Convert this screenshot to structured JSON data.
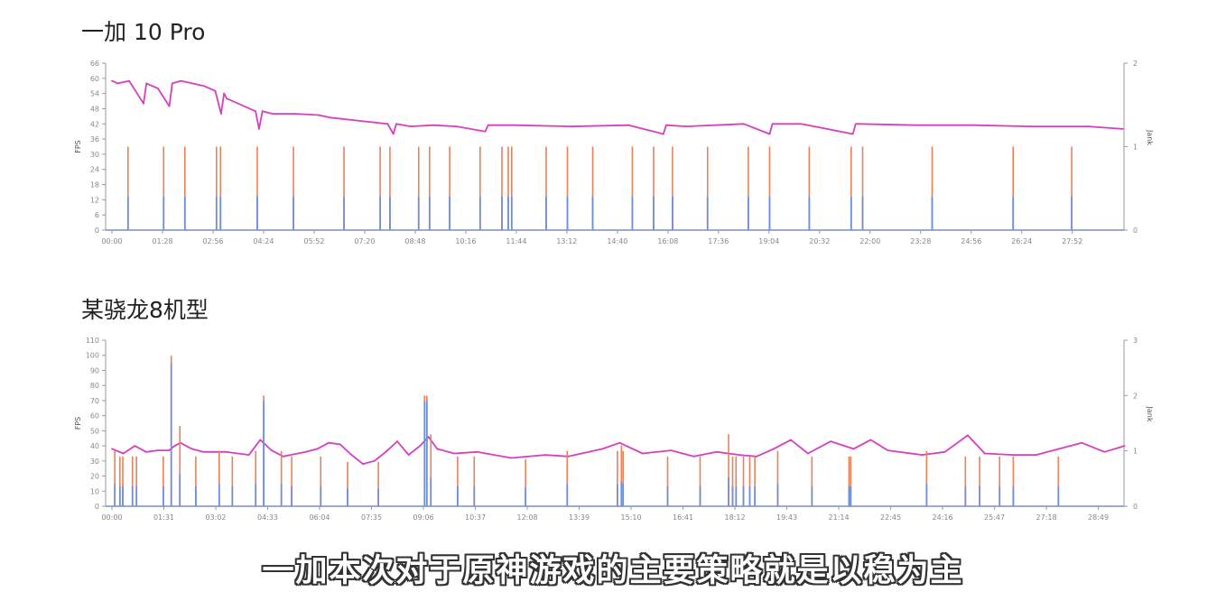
{
  "caption": "一加本次对于原神游戏的主要策略就是以稳为主",
  "colors": {
    "fps": "#d63fbf",
    "jank_top": "#e8825a",
    "jank_base": "#6f8fd6",
    "axis": "#9a9a9a",
    "tick_text": "#888888"
  },
  "chart_data": [
    {
      "type": "line",
      "title": "一加 10 Pro",
      "ylabel": "FPS",
      "y2label": "Jank",
      "ylim": [
        0,
        66
      ],
      "yticks": [
        0,
        6,
        12,
        18,
        24,
        30,
        36,
        42,
        48,
        54,
        60,
        66
      ],
      "y2lim": [
        0,
        2
      ],
      "y2ticks": [
        0,
        1,
        2
      ],
      "xlim": [
        "00:00",
        "29:22"
      ],
      "xticks": [
        "00:00",
        "01:28",
        "02:56",
        "04:24",
        "05:52",
        "07:20",
        "08:48",
        "10:16",
        "11:44",
        "13:12",
        "14:40",
        "16:08",
        "17:36",
        "19:04",
        "20:32",
        "22:00",
        "23:28",
        "24:56",
        "26:24",
        "27:52"
      ],
      "grid": false,
      "series": [
        {
          "axis": "left",
          "kind": "line",
          "points": [
            [
              "00:00",
              59
            ],
            [
              "00:10",
              58
            ],
            [
              "00:30",
              59
            ],
            [
              "00:55",
              50
            ],
            [
              "01:00",
              58
            ],
            [
              "01:20",
              56
            ],
            [
              "01:40",
              49
            ],
            [
              "01:45",
              58
            ],
            [
              "02:00",
              59
            ],
            [
              "02:20",
              58
            ],
            [
              "02:40",
              57
            ],
            [
              "03:00",
              55
            ],
            [
              "03:10",
              46
            ],
            [
              "03:15",
              54
            ],
            [
              "03:20",
              52
            ],
            [
              "03:40",
              50
            ],
            [
              "04:10",
              47
            ],
            [
              "04:16",
              40
            ],
            [
              "04:22",
              47
            ],
            [
              "04:40",
              46
            ],
            [
              "05:20",
              46
            ],
            [
              "06:00",
              45.5
            ],
            [
              "06:20",
              44.5
            ],
            [
              "06:40",
              44
            ],
            [
              "07:20",
              43
            ],
            [
              "08:00",
              42
            ],
            [
              "08:10",
              38
            ],
            [
              "08:15",
              42
            ],
            [
              "08:40",
              41
            ],
            [
              "09:20",
              41.5
            ],
            [
              "10:00",
              41
            ],
            [
              "10:50",
              39
            ],
            [
              "10:55",
              41.5
            ],
            [
              "11:40",
              41.5
            ],
            [
              "13:20",
              41
            ],
            [
              "15:00",
              41.5
            ],
            [
              "16:00",
              38
            ],
            [
              "16:05",
              41.5
            ],
            [
              "16:40",
              41
            ],
            [
              "18:20",
              42
            ],
            [
              "19:05",
              38
            ],
            [
              "19:10",
              42
            ],
            [
              "20:00",
              42
            ],
            [
              "21:30",
              38
            ],
            [
              "21:35",
              42
            ],
            [
              "21:40",
              42
            ],
            [
              "23:20",
              41.5
            ],
            [
              "25:00",
              41.5
            ],
            [
              "26:40",
              41
            ],
            [
              "28:20",
              41
            ],
            [
              "29:20",
              40
            ]
          ]
        },
        {
          "axis": "right",
          "kind": "spikes",
          "points": [
            [
              "00:28",
              1
            ],
            [
              "01:30",
              1
            ],
            [
              "02:07",
              1
            ],
            [
              "03:02",
              1
            ],
            [
              "03:09",
              1
            ],
            [
              "04:13",
              1
            ],
            [
              "05:16",
              1
            ],
            [
              "06:44",
              1
            ],
            [
              "07:47",
              1
            ],
            [
              "08:04",
              1
            ],
            [
              "08:54",
              1
            ],
            [
              "09:13",
              1
            ],
            [
              "09:48",
              1
            ],
            [
              "10:41",
              1
            ],
            [
              "11:19",
              1
            ],
            [
              "11:30",
              1
            ],
            [
              "11:36",
              1
            ],
            [
              "12:36",
              1
            ],
            [
              "13:13",
              1
            ],
            [
              "13:57",
              1
            ],
            [
              "15:06",
              1
            ],
            [
              "15:43",
              1
            ],
            [
              "16:16",
              1
            ],
            [
              "17:17",
              1
            ],
            [
              "18:28",
              1
            ],
            [
              "19:05",
              1
            ],
            [
              "20:14",
              1
            ],
            [
              "21:27",
              1
            ],
            [
              "21:47",
              1
            ],
            [
              "23:48",
              1
            ],
            [
              "26:09",
              1
            ],
            [
              "27:51",
              1
            ]
          ]
        }
      ]
    },
    {
      "type": "line",
      "title": "某骁龙8机型",
      "ylabel": "FPS",
      "y2label": "Jank",
      "ylim": [
        0,
        110
      ],
      "yticks": [
        0,
        10,
        20,
        30,
        40,
        50,
        60,
        70,
        80,
        90,
        100,
        110
      ],
      "y2lim": [
        0,
        3
      ],
      "y2ticks": [
        0,
        1,
        2,
        3
      ],
      "xlim": [
        "00:00",
        "29:34"
      ],
      "xticks": [
        "00:00",
        "01:31",
        "03:02",
        "04:33",
        "06:04",
        "07:35",
        "09:06",
        "10:37",
        "12:08",
        "13:39",
        "15:10",
        "16:41",
        "18:12",
        "19:43",
        "21:14",
        "22:45",
        "24:16",
        "25:47",
        "27:18",
        "28:49"
      ],
      "grid": false,
      "series": [
        {
          "axis": "left",
          "kind": "line",
          "points": [
            [
              "00:00",
              38
            ],
            [
              "00:20",
              35
            ],
            [
              "00:40",
              40
            ],
            [
              "01:00",
              36
            ],
            [
              "01:20",
              37
            ],
            [
              "01:40",
              37
            ],
            [
              "01:50",
              40
            ],
            [
              "02:00",
              42
            ],
            [
              "02:20",
              38
            ],
            [
              "02:40",
              36
            ],
            [
              "03:20",
              36
            ],
            [
              "04:00",
              34
            ],
            [
              "04:20",
              44
            ],
            [
              "04:40",
              37
            ],
            [
              "05:00",
              33
            ],
            [
              "05:40",
              36
            ],
            [
              "06:00",
              38
            ],
            [
              "06:20",
              42
            ],
            [
              "06:40",
              41
            ],
            [
              "07:00",
              34
            ],
            [
              "07:20",
              28
            ],
            [
              "07:40",
              30
            ],
            [
              "08:00",
              36
            ],
            [
              "08:20",
              43
            ],
            [
              "08:40",
              34
            ],
            [
              "09:00",
              40
            ],
            [
              "09:15",
              46
            ],
            [
              "09:30",
              38
            ],
            [
              "10:00",
              35
            ],
            [
              "10:40",
              36
            ],
            [
              "11:40",
              32
            ],
            [
              "12:40",
              34
            ],
            [
              "13:20",
              33
            ],
            [
              "14:20",
              38
            ],
            [
              "14:50",
              42
            ],
            [
              "15:30",
              35
            ],
            [
              "16:20",
              37
            ],
            [
              "17:00",
              33
            ],
            [
              "17:40",
              36
            ],
            [
              "18:20",
              34
            ],
            [
              "18:50",
              33
            ],
            [
              "19:20",
              38
            ],
            [
              "19:50",
              44
            ],
            [
              "20:20",
              35
            ],
            [
              "21:00",
              43
            ],
            [
              "21:40",
              38
            ],
            [
              "22:10",
              44
            ],
            [
              "22:40",
              37
            ],
            [
              "23:40",
              34
            ],
            [
              "24:20",
              36
            ],
            [
              "25:00",
              47
            ],
            [
              "25:30",
              35
            ],
            [
              "26:20",
              34
            ],
            [
              "27:00",
              34
            ],
            [
              "27:40",
              38
            ],
            [
              "28:20",
              42
            ],
            [
              "29:00",
              36
            ],
            [
              "29:35",
              40
            ]
          ]
        },
        {
          "axis": "right",
          "kind": "spikes",
          "points": [
            [
              "00:05",
              1
            ],
            [
              "00:14",
              0.9
            ],
            [
              "00:19",
              0.9
            ],
            [
              "00:36",
              0.9
            ],
            [
              "00:43",
              0.9
            ],
            [
              "01:30",
              0.9
            ],
            [
              "01:44",
              2.72
            ],
            [
              "01:59",
              1.45
            ],
            [
              "02:27",
              0.9
            ],
            [
              "03:08",
              1
            ],
            [
              "03:31",
              0.9
            ],
            [
              "04:12",
              1
            ],
            [
              "04:26",
              2
            ],
            [
              "04:57",
              1
            ],
            [
              "05:15",
              0.9
            ],
            [
              "06:06",
              0.9
            ],
            [
              "06:53",
              0.8
            ],
            [
              "07:47",
              0.8
            ],
            [
              "09:08",
              2
            ],
            [
              "09:12",
              2
            ],
            [
              "09:19",
              1.3
            ],
            [
              "10:06",
              0.9
            ],
            [
              "10:35",
              0.9
            ],
            [
              "12:05",
              0.85
            ],
            [
              "13:18",
              1
            ],
            [
              "14:46",
              1
            ],
            [
              "14:53",
              1.1
            ],
            [
              "14:56",
              1
            ],
            [
              "16:14",
              0.9
            ],
            [
              "17:11",
              0.9
            ],
            [
              "18:01",
              1.3
            ],
            [
              "18:08",
              0.9
            ],
            [
              "18:14",
              0.9
            ],
            [
              "18:27",
              0.9
            ],
            [
              "18:38",
              0.9
            ],
            [
              "18:47",
              0.9
            ],
            [
              "19:27",
              1
            ],
            [
              "20:27",
              0.9
            ],
            [
              "21:32",
              0.9
            ],
            [
              "21:35",
              0.9
            ],
            [
              "23:48",
              1
            ],
            [
              "24:56",
              0.9
            ],
            [
              "25:21",
              0.9
            ],
            [
              "25:56",
              0.9
            ],
            [
              "26:20",
              0.9
            ],
            [
              "27:39",
              0.9
            ]
          ]
        }
      ]
    }
  ]
}
